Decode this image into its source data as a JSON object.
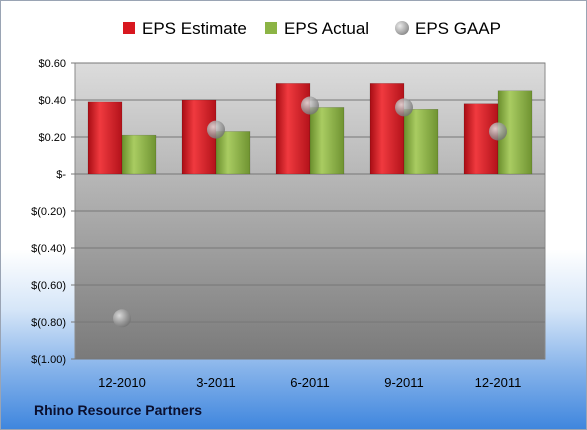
{
  "company_name": "Rhino Resource Partners",
  "colors": {
    "estimate": "#d8171f",
    "actual": "#8cb445",
    "gaap": "#a6a6a6",
    "plot_top": "#dcdcdc",
    "plot_bottom": "#7a7a7a"
  },
  "chart_data": {
    "type": "bar",
    "categories": [
      "12-2010",
      "3-2011",
      "6-2011",
      "9-2011",
      "12-2011"
    ],
    "series": [
      {
        "name": "EPS Estimate",
        "kind": "bar",
        "values": [
          0.39,
          0.4,
          0.49,
          0.49,
          0.38
        ]
      },
      {
        "name": "EPS Actual",
        "kind": "bar",
        "values": [
          0.21,
          0.23,
          0.36,
          0.35,
          0.45
        ]
      },
      {
        "name": "EPS GAAP",
        "kind": "point",
        "values": [
          -0.78,
          0.24,
          0.37,
          0.36,
          0.23
        ]
      }
    ],
    "ylim": [
      -1.0,
      0.6
    ],
    "yticks": [
      0.6,
      0.4,
      0.2,
      0.0,
      -0.2,
      -0.4,
      -0.6,
      -0.8,
      -1.0
    ],
    "ytick_labels": [
      "$0.60",
      "$0.40",
      "$0.20",
      "$-",
      "$(0.20)",
      "$(0.40)",
      "$(0.60)",
      "$(0.80)",
      "$(1.00)"
    ],
    "legend_position": "top",
    "grid": true
  }
}
